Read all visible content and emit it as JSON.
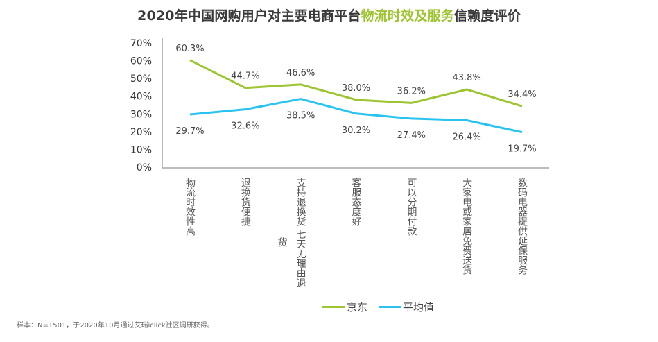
{
  "title": {
    "part1": "2020年中国网购用户对主要电商平台",
    "highlight": "物流时效及服务",
    "part2": "信赖度评价"
  },
  "colors": {
    "jd": "#9ec431",
    "avg": "#29c3ef",
    "highlight": "#9ec431"
  },
  "chart_data": {
    "type": "line",
    "title": "2020年中国网购用户对主要电商平台物流时效及服务信赖度评价",
    "categories": [
      "物流时效性高",
      "退换货便捷",
      "支持退换货 七天无理由退货",
      "客服态度好",
      "可以分期付款",
      "大家电或家居免费送货",
      "数码电器提供延保服务"
    ],
    "series": [
      {
        "name": "京东",
        "values": [
          60.3,
          44.7,
          46.6,
          38.0,
          36.2,
          43.8,
          34.4
        ],
        "labels": [
          "60.3%",
          "44.7%",
          "46.6%",
          "38.0%",
          "36.2%",
          "43.8%",
          "34.4%"
        ]
      },
      {
        "name": "平均值",
        "values": [
          29.7,
          32.6,
          38.5,
          30.2,
          27.4,
          26.4,
          19.7
        ],
        "labels": [
          "29.7%",
          "32.6%",
          "38.5%",
          "30.2%",
          "27.4%",
          "26.4%",
          "19.7%"
        ]
      }
    ],
    "yticks": [
      "0%",
      "10%",
      "20%",
      "30%",
      "40%",
      "50%",
      "60%",
      "70%"
    ],
    "ylim": [
      0,
      70
    ],
    "xlabel": "",
    "ylabel": "",
    "grid": false,
    "legend": "bottom"
  },
  "category_display": [
    [
      "物流时效性高"
    ],
    [
      "退换货便捷"
    ],
    [
      "支持退换货 七天无理由退",
      "货"
    ],
    [
      "客服态度好"
    ],
    [
      "可以分期付款"
    ],
    [
      "大家电或家居免费送货"
    ],
    [
      "数码电器提供延保服务"
    ]
  ],
  "legend": {
    "jd": "京东",
    "avg": "平均值"
  },
  "footnote": "样本：N=1501，于2020年10月通过艾瑞iclick社区调研获得。"
}
